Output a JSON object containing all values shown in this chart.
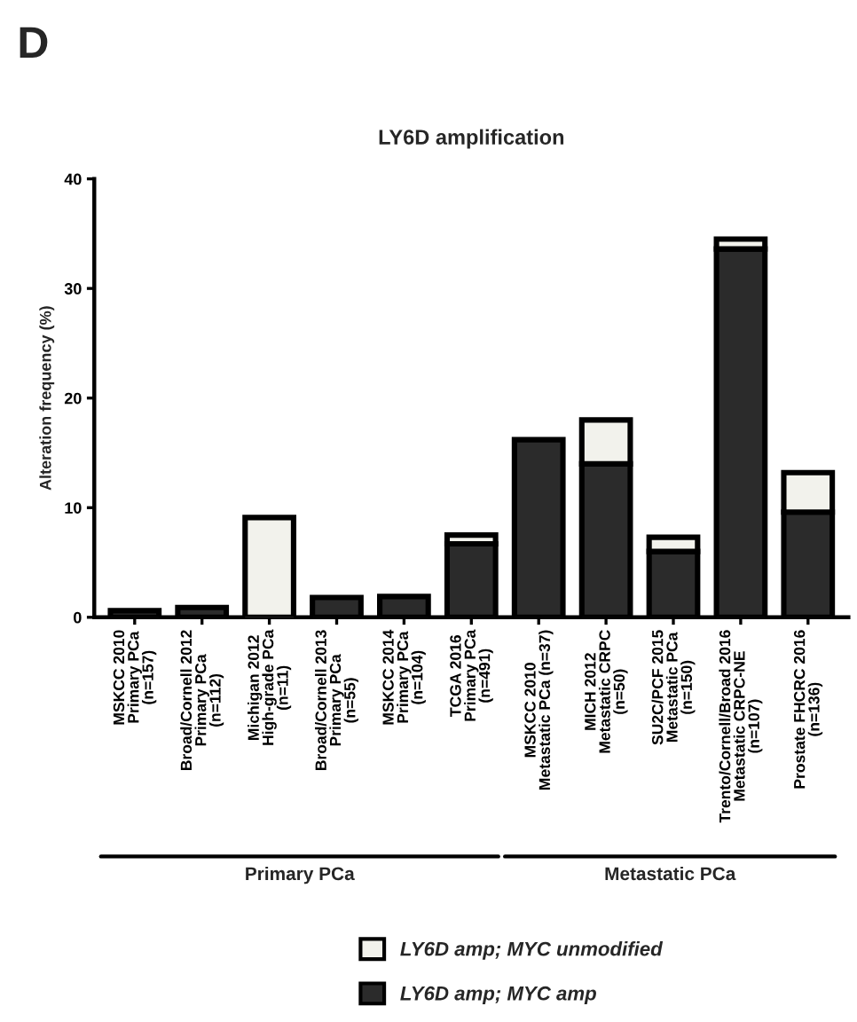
{
  "chart_data": {
    "type": "bar",
    "title": "LY6D amplification",
    "ylabel": "Alteration frequency (%)",
    "categories": [
      "MSKCC 2010\nPrimary PCa\n(n=157)",
      "Broad/Cornell 2012\nPrimary PCa\n(n=112)",
      "Michigan 2012\nHigh-grade PCa\n(n=11)",
      "Broad/Cornell 2013\nPrimary PCa\n(n=55)",
      "MSKCC 2014\nPrimary PCa\n(n=104)",
      "TCGA 2016\nPrimary PCa\n(n=491)",
      "MSKCC 2010\nMetastatic PCa (n=37)",
      "MICH 2012\nMetastatic CRPC\n(n=50)",
      "SU2C/PCF 2015\nMetastatic PCa\n(n=150)",
      "Trento/Cornell/Broad 2016\nMetastatic CRPC-NE\n(n=107)",
      "Prostate FHCRC 2016\n(n=136)"
    ],
    "stacked": true,
    "series": [
      {
        "name": "LY6D amp; MYC amp",
        "color": "#2b2b2b",
        "values": [
          0.6,
          0.9,
          null,
          1.8,
          1.9,
          6.7,
          16.2,
          14.0,
          6.0,
          33.6,
          9.6
        ]
      },
      {
        "name": "LY6D amp; MYC unmodified",
        "color": "#f2f2ec",
        "values": [
          null,
          null,
          9.1,
          null,
          null,
          0.8,
          null,
          4.0,
          1.3,
          0.9,
          3.6
        ]
      }
    ],
    "ylim": [
      0,
      40
    ],
    "yticks": [
      0,
      10,
      20,
      30,
      40
    ],
    "grid": false,
    "legend": "bottom",
    "annotations": [
      "D",
      "Primary PCa",
      "Metastatic PCa"
    ]
  }
}
